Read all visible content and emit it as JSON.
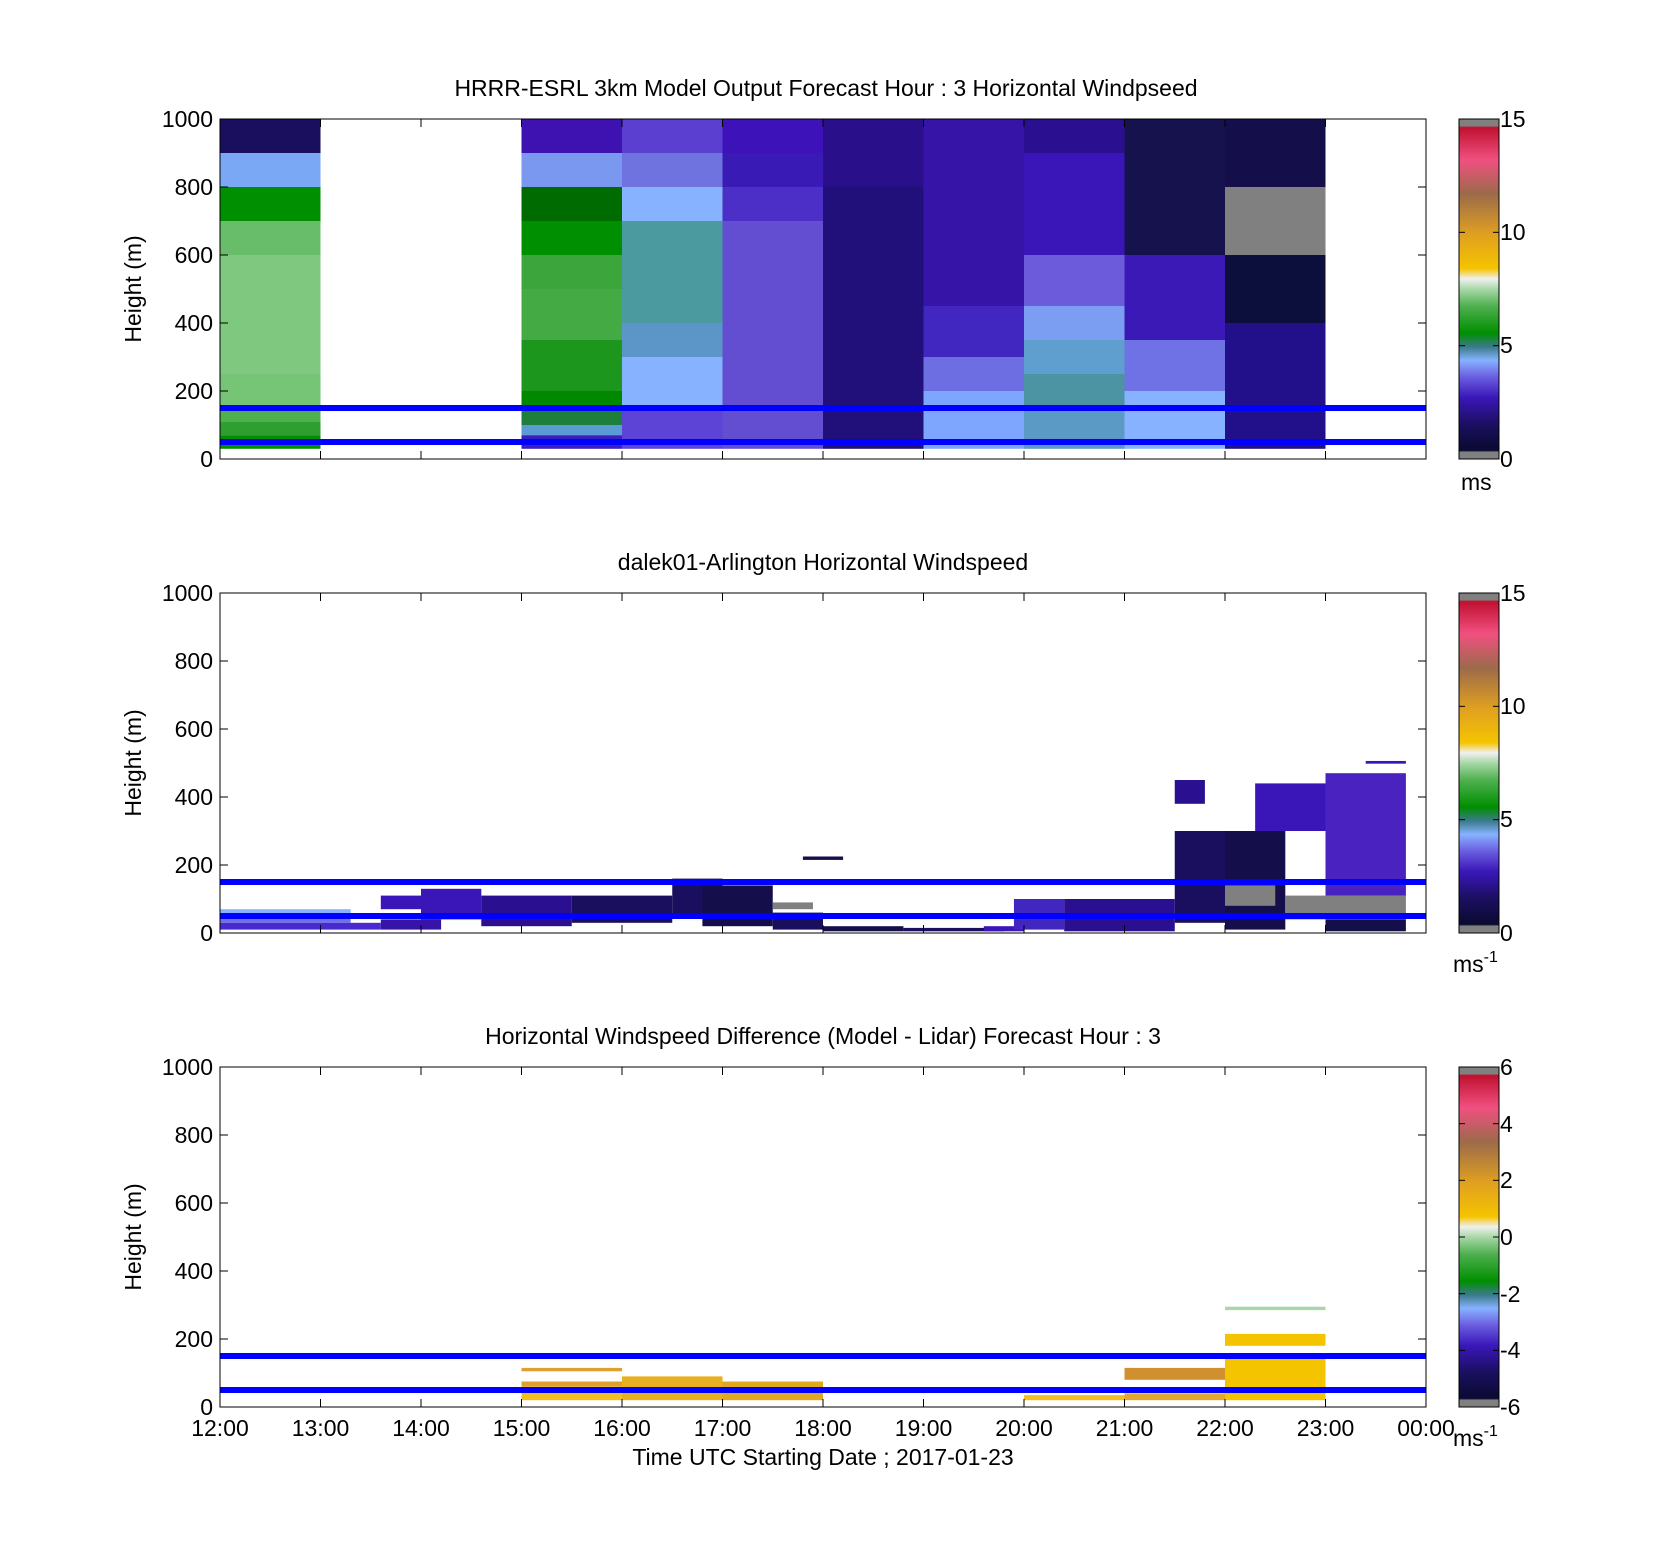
{
  "page": {
    "background": "#ffffff"
  },
  "x_ticks": [
    "12:00",
    "13:00",
    "14:00",
    "15:00",
    "16:00",
    "17:00",
    "18:00",
    "19:00",
    "20:00",
    "21:00",
    "22:00",
    "23:00",
    "00:00"
  ],
  "xlabel": "Time UTC  Starting Date ; 2017-01-23",
  "reference_lines": {
    "heights_m": [
      50,
      150
    ],
    "color": "#0000ff"
  },
  "chart_data": [
    {
      "type": "heatmap",
      "title": "HRRR-ESRL 3km Model Output   Forecast Hour : 3 Horizontal Windpseed",
      "ylabel": "Height (m)",
      "ylim": [
        0,
        1000
      ],
      "yticks": [
        "0",
        "200",
        "400",
        "600",
        "800",
        "1000"
      ],
      "x_range_hours": [
        12,
        24
      ],
      "colorbar": {
        "min": 0,
        "max": 15,
        "ticks": [
          "0",
          "5",
          "10",
          "15"
        ],
        "unit": "ms",
        "unit_sup": ""
      },
      "cells": [
        {
          "t0": 12,
          "t1": 13,
          "h0": 900,
          "h1": 1000,
          "c": "#1a0f5e"
        },
        {
          "t0": 12,
          "t1": 13,
          "h0": 800,
          "h1": 900,
          "c": "#7aa8f5"
        },
        {
          "t0": 12,
          "t1": 13,
          "h0": 700,
          "h1": 800,
          "c": "#008f00"
        },
        {
          "t0": 12,
          "t1": 13,
          "h0": 600,
          "h1": 700,
          "c": "#68bd6a"
        },
        {
          "t0": 12,
          "t1": 13,
          "h0": 250,
          "h1": 600,
          "c": "#7ec97f"
        },
        {
          "t0": 12,
          "t1": 13,
          "h0": 150,
          "h1": 250,
          "c": "#76c577"
        },
        {
          "t0": 12,
          "t1": 13,
          "h0": 110,
          "h1": 150,
          "c": "#4fb04f"
        },
        {
          "t0": 12,
          "t1": 13,
          "h0": 70,
          "h1": 110,
          "c": "#2e9e30"
        },
        {
          "t0": 12,
          "t1": 13,
          "h0": 30,
          "h1": 70,
          "c": "#008f00"
        },
        {
          "t0": 15,
          "t1": 16,
          "h0": 900,
          "h1": 1000,
          "c": "#3d12b0"
        },
        {
          "t0": 15,
          "t1": 16,
          "h0": 800,
          "h1": 900,
          "c": "#7a98f0"
        },
        {
          "t0": 15,
          "t1": 16,
          "h0": 700,
          "h1": 800,
          "c": "#006b00"
        },
        {
          "t0": 15,
          "t1": 16,
          "h0": 600,
          "h1": 700,
          "c": "#008f00"
        },
        {
          "t0": 15,
          "t1": 16,
          "h0": 500,
          "h1": 600,
          "c": "#3ca53c"
        },
        {
          "t0": 15,
          "t1": 16,
          "h0": 350,
          "h1": 500,
          "c": "#44aa44"
        },
        {
          "t0": 15,
          "t1": 16,
          "h0": 200,
          "h1": 350,
          "c": "#1c961c"
        },
        {
          "t0": 15,
          "t1": 16,
          "h0": 150,
          "h1": 200,
          "c": "#008800"
        },
        {
          "t0": 15,
          "t1": 16,
          "h0": 100,
          "h1": 150,
          "c": "#1e7f3c"
        },
        {
          "t0": 15,
          "t1": 16,
          "h0": 70,
          "h1": 100,
          "c": "#5a9bd6"
        },
        {
          "t0": 15,
          "t1": 16,
          "h0": 30,
          "h1": 70,
          "c": "#3a1fc0"
        },
        {
          "t0": 16,
          "t1": 17,
          "h0": 900,
          "h1": 1000,
          "c": "#5a3fd0"
        },
        {
          "t0": 16,
          "t1": 17,
          "h0": 800,
          "h1": 900,
          "c": "#6f73e0"
        },
        {
          "t0": 16,
          "t1": 17,
          "h0": 700,
          "h1": 800,
          "c": "#86b2ff"
        },
        {
          "t0": 16,
          "t1": 17,
          "h0": 400,
          "h1": 700,
          "c": "#4a9aa0"
        },
        {
          "t0": 16,
          "t1": 17,
          "h0": 300,
          "h1": 400,
          "c": "#5c95c8"
        },
        {
          "t0": 16,
          "t1": 17,
          "h0": 150,
          "h1": 300,
          "c": "#86b2ff"
        },
        {
          "t0": 16,
          "t1": 17,
          "h0": 30,
          "h1": 150,
          "c": "#5e44d6"
        },
        {
          "t0": 17,
          "t1": 18,
          "h0": 900,
          "h1": 1000,
          "c": "#3d12b8"
        },
        {
          "t0": 17,
          "t1": 18,
          "h0": 800,
          "h1": 900,
          "c": "#3a1ab5"
        },
        {
          "t0": 17,
          "t1": 18,
          "h0": 700,
          "h1": 800,
          "c": "#4b2fc6"
        },
        {
          "t0": 17,
          "t1": 18,
          "h0": 30,
          "h1": 700,
          "c": "#634ed2"
        },
        {
          "t0": 18,
          "t1": 19,
          "h0": 800,
          "h1": 1000,
          "c": "#2a0f8a"
        },
        {
          "t0": 18,
          "t1": 19,
          "h0": 30,
          "h1": 800,
          "c": "#21107a"
        },
        {
          "t0": 19,
          "t1": 20,
          "h0": 450,
          "h1": 1000,
          "c": "#3714a8"
        },
        {
          "t0": 19,
          "t1": 20,
          "h0": 300,
          "h1": 450,
          "c": "#4126c0"
        },
        {
          "t0": 19,
          "t1": 20,
          "h0": 200,
          "h1": 300,
          "c": "#6c6ee2"
        },
        {
          "t0": 19,
          "t1": 20,
          "h0": 30,
          "h1": 200,
          "c": "#7fa6ff"
        },
        {
          "t0": 20,
          "t1": 21,
          "h0": 900,
          "h1": 1000,
          "c": "#2a0f90"
        },
        {
          "t0": 20,
          "t1": 21,
          "h0": 600,
          "h1": 900,
          "c": "#3a16b8"
        },
        {
          "t0": 20,
          "t1": 21,
          "h0": 450,
          "h1": 600,
          "c": "#6c5cdc"
        },
        {
          "t0": 20,
          "t1": 21,
          "h0": 350,
          "h1": 450,
          "c": "#7b9ef2"
        },
        {
          "t0": 20,
          "t1": 21,
          "h0": 250,
          "h1": 350,
          "c": "#5f9fcf"
        },
        {
          "t0": 20,
          "t1": 21,
          "h0": 150,
          "h1": 250,
          "c": "#4c93a4"
        },
        {
          "t0": 20,
          "t1": 21,
          "h0": 30,
          "h1": 150,
          "c": "#5a9ac4"
        },
        {
          "t0": 21,
          "t1": 22,
          "h0": 600,
          "h1": 1000,
          "c": "#15124e"
        },
        {
          "t0": 21,
          "t1": 22,
          "h0": 350,
          "h1": 600,
          "c": "#3b19b6"
        },
        {
          "t0": 21,
          "t1": 22,
          "h0": 200,
          "h1": 350,
          "c": "#6f72e4"
        },
        {
          "t0": 21,
          "t1": 22,
          "h0": 30,
          "h1": 200,
          "c": "#86b2ff"
        },
        {
          "t0": 22,
          "t1": 23,
          "h0": 800,
          "h1": 1000,
          "c": "#140f4a"
        },
        {
          "t0": 22,
          "t1": 23,
          "h0": 600,
          "h1": 800,
          "c": "#808080"
        },
        {
          "t0": 22,
          "t1": 23,
          "h0": 400,
          "h1": 600,
          "c": "#0c0f3c"
        },
        {
          "t0": 22,
          "t1": 23,
          "h0": 30,
          "h1": 400,
          "c": "#22108a"
        }
      ]
    },
    {
      "type": "heatmap",
      "title": "dalek01-Arlington  Horizontal Windspeed",
      "ylabel": "Height (m)",
      "ylim": [
        0,
        1000
      ],
      "yticks": [
        "0",
        "200",
        "400",
        "600",
        "800",
        "1000"
      ],
      "x_range_hours": [
        12,
        24
      ],
      "colorbar": {
        "min": 0,
        "max": 15,
        "ticks": [
          "0",
          "5",
          "10",
          "15"
        ],
        "unit": "ms",
        "unit_sup": "-1"
      },
      "cells": [
        {
          "t0": 12,
          "t1": 13.3,
          "h0": 50,
          "h1": 70,
          "c": "#86b2ff"
        },
        {
          "t0": 12,
          "t1": 13.3,
          "h0": 30,
          "h1": 50,
          "c": "#6f72e4"
        },
        {
          "t0": 12,
          "t1": 13.6,
          "h0": 10,
          "h1": 30,
          "c": "#4a2ad0"
        },
        {
          "t0": 13.6,
          "t1": 14.2,
          "h0": 70,
          "h1": 110,
          "c": "#3a16b8"
        },
        {
          "t0": 13.6,
          "t1": 14.2,
          "h0": 10,
          "h1": 40,
          "c": "#3714a8"
        },
        {
          "t0": 14.0,
          "t1": 14.6,
          "h0": 40,
          "h1": 130,
          "c": "#3a16b8"
        },
        {
          "t0": 14.6,
          "t1": 15.5,
          "h0": 20,
          "h1": 110,
          "c": "#2a0f90"
        },
        {
          "t0": 15.5,
          "t1": 16.5,
          "h0": 30,
          "h1": 110,
          "c": "#1a0f5e"
        },
        {
          "t0": 16.5,
          "t1": 17.0,
          "h0": 50,
          "h1": 160,
          "c": "#1a0f5e"
        },
        {
          "t0": 16.8,
          "t1": 17.5,
          "h0": 20,
          "h1": 140,
          "c": "#140f4a"
        },
        {
          "t0": 17.5,
          "t1": 18.0,
          "h0": 10,
          "h1": 60,
          "c": "#1a0f5e"
        },
        {
          "t0": 17.5,
          "t1": 17.9,
          "h0": 70,
          "h1": 90,
          "c": "#808080"
        },
        {
          "t0": 17.8,
          "t1": 18.2,
          "h0": 215,
          "h1": 225,
          "c": "#140f4a"
        },
        {
          "t0": 18.0,
          "t1": 18.8,
          "h0": 5,
          "h1": 20,
          "c": "#140f4a"
        },
        {
          "t0": 18.8,
          "t1": 19.8,
          "h0": 5,
          "h1": 15,
          "c": "#1a0f5e"
        },
        {
          "t0": 19.6,
          "t1": 20.0,
          "h0": 5,
          "h1": 20,
          "c": "#3a16b8"
        },
        {
          "t0": 19.9,
          "t1": 20.4,
          "h0": 10,
          "h1": 100,
          "c": "#4126c0"
        },
        {
          "t0": 20.4,
          "t1": 21.5,
          "h0": 5,
          "h1": 100,
          "c": "#2a0f90"
        },
        {
          "t0": 21.5,
          "t1": 22.0,
          "h0": 30,
          "h1": 300,
          "c": "#1a0f5e"
        },
        {
          "t0": 21.5,
          "t1": 21.8,
          "h0": 380,
          "h1": 450,
          "c": "#2a0f90"
        },
        {
          "t0": 22.0,
          "t1": 22.6,
          "h0": 10,
          "h1": 300,
          "c": "#140f4a"
        },
        {
          "t0": 22.0,
          "t1": 22.5,
          "h0": 80,
          "h1": 140,
          "c": "#808080"
        },
        {
          "t0": 22.3,
          "t1": 23.0,
          "h0": 300,
          "h1": 440,
          "c": "#3a16b8"
        },
        {
          "t0": 22.6,
          "t1": 23.8,
          "h0": 40,
          "h1": 110,
          "c": "#808080"
        },
        {
          "t0": 23.0,
          "t1": 23.8,
          "h0": 110,
          "h1": 470,
          "c": "#4a22c0"
        },
        {
          "t0": 23.0,
          "t1": 23.8,
          "h0": 5,
          "h1": 40,
          "c": "#140f4a"
        },
        {
          "t0": 23.4,
          "t1": 23.8,
          "h0": 498,
          "h1": 506,
          "c": "#3a16b8"
        }
      ]
    },
    {
      "type": "heatmap",
      "title": "Horizontal Windspeed Difference (Model - Lidar) Forecast Hour : 3",
      "ylabel": "Height (m)",
      "ylim": [
        0,
        1000
      ],
      "yticks": [
        "0",
        "200",
        "400",
        "600",
        "800",
        "1000"
      ],
      "x_range_hours": [
        12,
        24
      ],
      "colorbar": {
        "min": -6,
        "max": 6,
        "ticks": [
          "-6",
          "-4",
          "-2",
          "0",
          "2",
          "4",
          "6"
        ],
        "unit": "ms",
        "unit_sup": "-1"
      },
      "cells": [
        {
          "t0": 15,
          "t1": 16,
          "h0": 105,
          "h1": 115,
          "c": "#e0a030"
        },
        {
          "t0": 15,
          "t1": 16,
          "h0": 60,
          "h1": 75,
          "c": "#e0a030"
        },
        {
          "t0": 15,
          "t1": 16,
          "h0": 20,
          "h1": 60,
          "c": "#f0c020"
        },
        {
          "t0": 16,
          "t1": 17,
          "h0": 20,
          "h1": 90,
          "c": "#e6b020"
        },
        {
          "t0": 17,
          "t1": 18,
          "h0": 20,
          "h1": 75,
          "c": "#e0a820"
        },
        {
          "t0": 20,
          "t1": 21,
          "h0": 20,
          "h1": 35,
          "c": "#f0c020"
        },
        {
          "t0": 21,
          "t1": 22,
          "h0": 80,
          "h1": 115,
          "c": "#d09030"
        },
        {
          "t0": 21,
          "t1": 22,
          "h0": 20,
          "h1": 40,
          "c": "#e0a830"
        },
        {
          "t0": 22,
          "t1": 23,
          "h0": 285,
          "h1": 295,
          "c": "#a8d8a8"
        },
        {
          "t0": 22,
          "t1": 23,
          "h0": 180,
          "h1": 215,
          "c": "#f5c400"
        },
        {
          "t0": 22,
          "t1": 23,
          "h0": 20,
          "h1": 150,
          "c": "#f5c400"
        }
      ]
    }
  ]
}
